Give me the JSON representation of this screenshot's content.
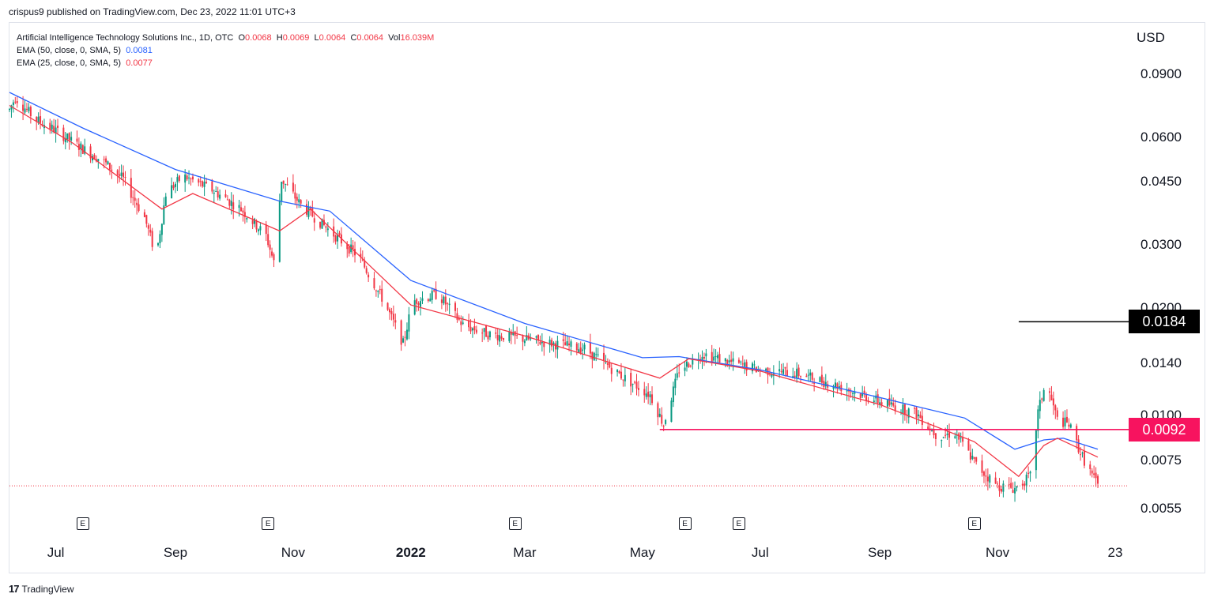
{
  "publisher": "crispus9 published on TradingView.com, Dec 23, 2022 11:01 UTC+3",
  "legend": {
    "symbol": "Artificial Intelligence Technology Solutions Inc., 1D, OTC",
    "o_label": "O",
    "o": "0.0068",
    "h_label": "H",
    "h": "0.0069",
    "l_label": "L",
    "l": "0.0064",
    "c_label": "C",
    "c": "0.0064",
    "vol_label": "Vol",
    "vol": "16.039M",
    "ema50_label": "EMA (50, close, 0, SMA, 5)",
    "ema50": "0.0081",
    "ema25_label": "EMA (25, close, 0, SMA, 5)",
    "ema25": "0.0077"
  },
  "currency": "USD",
  "footer": {
    "logo_mark": "17",
    "brand": "TradingView"
  },
  "colors": {
    "up": "#089981",
    "down": "#f23645",
    "ema50": "#2962ff",
    "ema25": "#f23645",
    "resistance": "#000000",
    "support": "#f7135f"
  },
  "chart_data": {
    "type": "candlestick",
    "scale": "log",
    "yticks": [
      {
        "label": "0.0900",
        "value": 0.09
      },
      {
        "label": "0.0600",
        "value": 0.06
      },
      {
        "label": "0.0450",
        "value": 0.045
      },
      {
        "label": "0.0300",
        "value": 0.03
      },
      {
        "label": "0.0200",
        "value": 0.02
      },
      {
        "label": "0.0140",
        "value": 0.014
      },
      {
        "label": "0.0100",
        "value": 0.01
      },
      {
        "label": "0.0075",
        "value": 0.0075
      },
      {
        "label": "0.0055",
        "value": 0.0055
      }
    ],
    "xticks": [
      {
        "label": "Jul",
        "date": "2021-07-01",
        "bold": false
      },
      {
        "label": "Sep",
        "date": "2021-09-01",
        "bold": false
      },
      {
        "label": "Nov",
        "date": "2021-11-01",
        "bold": false
      },
      {
        "label": "2022",
        "date": "2022-01-01",
        "bold": true
      },
      {
        "label": "Mar",
        "date": "2022-03-01",
        "bold": false
      },
      {
        "label": "May",
        "date": "2022-05-01",
        "bold": false
      },
      {
        "label": "Jul",
        "date": "2022-07-01",
        "bold": false
      },
      {
        "label": "Sep",
        "date": "2022-09-01",
        "bold": false
      },
      {
        "label": "Nov",
        "date": "2022-11-01",
        "bold": false
      },
      {
        "label": "23",
        "date": "2023-01-01",
        "bold": false
      }
    ],
    "earnings_marker": "E",
    "earnings_dates": [
      "2021-07-15",
      "2021-10-19",
      "2022-02-24",
      "2022-05-23",
      "2022-06-20",
      "2022-10-20"
    ],
    "price_path": [
      [
        "2021-06-07",
        0.072
      ],
      [
        "2021-06-10",
        0.078
      ],
      [
        "2021-06-20",
        0.068
      ],
      [
        "2021-07-01",
        0.063
      ],
      [
        "2021-07-15",
        0.056
      ],
      [
        "2021-07-25",
        0.052
      ],
      [
        "2021-08-05",
        0.046
      ],
      [
        "2021-08-16",
        0.036
      ],
      [
        "2021-08-22",
        0.028
      ],
      [
        "2021-08-27",
        0.042
      ],
      [
        "2021-09-05",
        0.047
      ],
      [
        "2021-09-20",
        0.043
      ],
      [
        "2021-10-05",
        0.038
      ],
      [
        "2021-10-18",
        0.032
      ],
      [
        "2021-10-22",
        0.027
      ],
      [
        "2021-10-26",
        0.046
      ],
      [
        "2021-11-05",
        0.039
      ],
      [
        "2021-11-20",
        0.033
      ],
      [
        "2021-12-05",
        0.028
      ],
      [
        "2021-12-18",
        0.021
      ],
      [
        "2021-12-28",
        0.016
      ],
      [
        "2022-01-02",
        0.021
      ],
      [
        "2022-01-15",
        0.022
      ],
      [
        "2022-01-28",
        0.018
      ],
      [
        "2022-02-10",
        0.017
      ],
      [
        "2022-02-28",
        0.0165
      ],
      [
        "2022-03-15",
        0.016
      ],
      [
        "2022-04-01",
        0.0155
      ],
      [
        "2022-04-20",
        0.013
      ],
      [
        "2022-05-05",
        0.0115
      ],
      [
        "2022-05-12",
        0.0095
      ],
      [
        "2022-05-20",
        0.0135
      ],
      [
        "2022-06-01",
        0.015
      ],
      [
        "2022-06-15",
        0.0142
      ],
      [
        "2022-07-01",
        0.0135
      ],
      [
        "2022-07-20",
        0.0132
      ],
      [
        "2022-08-10",
        0.0122
      ],
      [
        "2022-09-01",
        0.011
      ],
      [
        "2022-09-20",
        0.0102
      ],
      [
        "2022-10-01",
        0.0088
      ],
      [
        "2022-10-10",
        0.009
      ],
      [
        "2022-10-22",
        0.0072
      ],
      [
        "2022-11-01",
        0.0064
      ],
      [
        "2022-11-10",
        0.0063
      ],
      [
        "2022-11-18",
        0.0068
      ],
      [
        "2022-11-22",
        0.0103
      ],
      [
        "2022-11-26",
        0.0125
      ],
      [
        "2022-12-02",
        0.0098
      ],
      [
        "2022-12-08",
        0.0095
      ],
      [
        "2022-12-15",
        0.0077
      ],
      [
        "2022-12-23",
        0.0064
      ]
    ],
    "ema50_path": [
      [
        "2021-06-07",
        0.0805
      ],
      [
        "2021-07-15",
        0.064
      ],
      [
        "2021-09-01",
        0.049
      ],
      [
        "2021-10-25",
        0.04
      ],
      [
        "2021-11-20",
        0.0375
      ],
      [
        "2022-01-01",
        0.024
      ],
      [
        "2022-03-01",
        0.0182
      ],
      [
        "2022-05-01",
        0.0146
      ],
      [
        "2022-05-20",
        0.0147
      ],
      [
        "2022-07-01",
        0.0135
      ],
      [
        "2022-09-01",
        0.0113
      ],
      [
        "2022-10-15",
        0.0099
      ],
      [
        "2022-11-10",
        0.0081
      ],
      [
        "2022-11-25",
        0.0086
      ],
      [
        "2022-12-05",
        0.0087
      ],
      [
        "2022-12-23",
        0.0081
      ]
    ],
    "ema25_path": [
      [
        "2021-06-07",
        0.074
      ],
      [
        "2021-07-10",
        0.058
      ],
      [
        "2021-08-25",
        0.038
      ],
      [
        "2021-09-10",
        0.042
      ],
      [
        "2021-10-25",
        0.033
      ],
      [
        "2021-11-10",
        0.038
      ],
      [
        "2022-01-01",
        0.0205
      ],
      [
        "2022-03-01",
        0.0168
      ],
      [
        "2022-05-10",
        0.0128
      ],
      [
        "2022-05-25",
        0.0145
      ],
      [
        "2022-07-01",
        0.0134
      ],
      [
        "2022-09-01",
        0.0108
      ],
      [
        "2022-10-20",
        0.0085
      ],
      [
        "2022-11-12",
        0.0068
      ],
      [
        "2022-11-25",
        0.0083
      ],
      [
        "2022-12-02",
        0.0087
      ],
      [
        "2022-12-23",
        0.0077
      ]
    ],
    "annotations": [
      {
        "label": "0.0184",
        "value": 0.0184,
        "from": "2022-11-12",
        "kind": "resistance"
      },
      {
        "label": "0.0092",
        "value": 0.0092,
        "from": "2022-05-10",
        "kind": "support"
      }
    ],
    "last_price": 0.0064
  }
}
